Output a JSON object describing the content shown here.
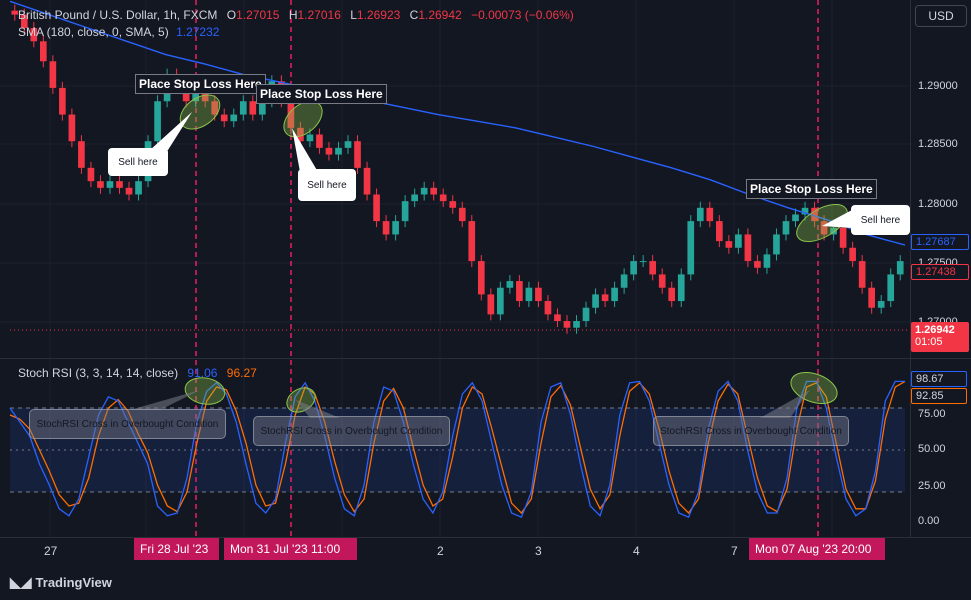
{
  "legend": {
    "symbol": "British Pound / U.S. Dollar, 1h, FXCM",
    "o_label": "O",
    "o": "1.27015",
    "h_label": "H",
    "h": "1.27016",
    "l_label": "L",
    "l": "1.26923",
    "c_label": "C",
    "c": "1.26942",
    "chg": "−0.00073 (−0.06%)",
    "sma_label": "SMA (180, close, 0, SMA, 5)",
    "sma_value": "1.27232",
    "stoch_label": "Stoch RSI (3, 3, 14, 14, close)",
    "stoch_k": "91.06",
    "stoch_d": "96.27"
  },
  "currency_button": "USD",
  "price_axis": [
    "1.29000",
    "1.28500",
    "1.28000",
    "1.27500",
    "1.27000"
  ],
  "rsi_axis": [
    "75.00",
    "50.00",
    "25.00",
    "0.00"
  ],
  "price_tags": {
    "sma": "1.27687",
    "ref": "1.27438",
    "last": "1.26942",
    "countdown": "01:05",
    "rsi_k": "98.67",
    "rsi_d": "92.85"
  },
  "time_axis": [
    "27",
    "2",
    "3",
    "4",
    "7"
  ],
  "crosshair_labels": [
    "Fri 28 Jul '23",
    "Mon 31 Jul '23   11:00",
    "Mon 07 Aug '23   20:00"
  ],
  "annotations": {
    "stop_loss": [
      "Place Stop Loss Here",
      "Place Stop Loss Here",
      "Place Stop Loss Here"
    ],
    "sell": [
      "Sell here",
      "Sell here",
      "Sell here"
    ],
    "stoch_cross": [
      "StochRSI Cross in Overbought Condition",
      "StochRSI Cross in Overbought Condition",
      "StochRSI Cross in Overbought Condition"
    ]
  },
  "brand": "TradingView",
  "colors": {
    "background": "#131722",
    "up": "#26a69a",
    "down": "#f23645",
    "sma": "#2962ff",
    "stoch_k": "#2962ff",
    "stoch_d": "#ff6d00",
    "crosshair": "#e91e63"
  },
  "chart_data": {
    "type": "candlestick",
    "timeframe": "1h",
    "price_range": [
      1.2668,
      1.2936
    ],
    "closes": [
      1.2925,
      1.2915,
      1.2905,
      1.289,
      1.287,
      1.285,
      1.283,
      1.281,
      1.28,
      1.2795,
      1.28,
      1.2795,
      1.279,
      1.28,
      1.283,
      1.286,
      1.288,
      1.287,
      1.286,
      1.287,
      1.286,
      1.285,
      1.2845,
      1.285,
      1.286,
      1.285,
      1.286,
      1.2875,
      1.286,
      1.284,
      1.283,
      1.2835,
      1.2825,
      1.282,
      1.2825,
      1.283,
      1.281,
      1.279,
      1.277,
      1.276,
      1.277,
      1.2785,
      1.279,
      1.2795,
      1.279,
      1.2785,
      1.278,
      1.277,
      1.274,
      1.2715,
      1.27,
      1.272,
      1.2725,
      1.271,
      1.272,
      1.271,
      1.27,
      1.2695,
      1.269,
      1.2695,
      1.2705,
      1.2715,
      1.271,
      1.272,
      1.273,
      1.274,
      1.274,
      1.273,
      1.272,
      1.271,
      1.273,
      1.277,
      1.278,
      1.277,
      1.2755,
      1.275,
      1.276,
      1.274,
      1.2735,
      1.2745,
      1.276,
      1.277,
      1.2775,
      1.278,
      1.277,
      1.276,
      1.2765,
      1.275,
      1.274,
      1.272,
      1.2705,
      1.271,
      1.273,
      1.274
    ],
    "sma_values": [
      1.2935,
      1.2925,
      1.2915,
      1.2905,
      1.2895,
      1.2888,
      1.288,
      1.2874,
      1.2868,
      1.2862,
      1.2856,
      1.285,
      1.2845,
      1.284,
      1.2833,
      1.2826,
      1.2818,
      1.281,
      1.2801,
      1.279,
      1.278,
      1.2771,
      1.276,
      1.2752
    ],
    "stoch_k": [
      80,
      70,
      60,
      40,
      25,
      8,
      3,
      15,
      45,
      75,
      88,
      85,
      70,
      55,
      40,
      10,
      3,
      5,
      30,
      70,
      92,
      98,
      90,
      70,
      40,
      12,
      5,
      15,
      55,
      88,
      98,
      85,
      60,
      30,
      8,
      3,
      25,
      70,
      95,
      92,
      70,
      40,
      15,
      5,
      20,
      60,
      90,
      98,
      85,
      55,
      25,
      5,
      2,
      20,
      70,
      95,
      98,
      75,
      40,
      10,
      3,
      25,
      75,
      98,
      99,
      85,
      55,
      25,
      5,
      2,
      20,
      65,
      92,
      99,
      85,
      50,
      20,
      5,
      5,
      30,
      80,
      99,
      99,
      80,
      45,
      15,
      3,
      8,
      35,
      85,
      99,
      99
    ],
    "stoch_d": [
      75,
      72,
      65,
      50,
      35,
      18,
      10,
      12,
      30,
      60,
      80,
      86,
      78,
      62,
      48,
      25,
      10,
      6,
      20,
      55,
      85,
      95,
      93,
      78,
      55,
      25,
      10,
      12,
      40,
      75,
      95,
      90,
      70,
      42,
      18,
      6,
      15,
      55,
      85,
      94,
      80,
      52,
      25,
      10,
      15,
      45,
      80,
      95,
      90,
      65,
      38,
      12,
      5,
      15,
      55,
      88,
      96,
      82,
      52,
      22,
      8,
      18,
      60,
      92,
      98,
      90,
      65,
      35,
      12,
      5,
      15,
      55,
      85,
      97,
      90,
      60,
      30,
      10,
      6,
      22,
      65,
      95,
      98,
      88,
      55,
      22,
      8,
      8,
      28,
      72,
      95,
      99
    ]
  }
}
